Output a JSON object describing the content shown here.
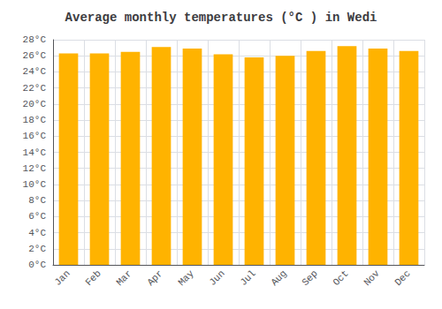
{
  "chart_data": {
    "type": "bar",
    "title": "Average monthly temperatures (°C ) in Wedi",
    "categories": [
      "Jan",
      "Feb",
      "Mar",
      "Apr",
      "May",
      "Jun",
      "Jul",
      "Aug",
      "Sep",
      "Oct",
      "Nov",
      "Dec"
    ],
    "values": [
      26.3,
      26.3,
      26.5,
      27.1,
      26.9,
      26.2,
      25.8,
      26.0,
      26.6,
      27.2,
      26.9,
      26.6
    ],
    "color": "#FFB300",
    "ylim": [
      0,
      28
    ],
    "yticks": [
      {
        "value": 0,
        "label": "0°C"
      },
      {
        "value": 2,
        "label": "2°C"
      },
      {
        "value": 4,
        "label": "4°C"
      },
      {
        "value": 6,
        "label": "6°C"
      },
      {
        "value": 8,
        "label": "8°C"
      },
      {
        "value": 10,
        "label": "10°C"
      },
      {
        "value": 12,
        "label": "12°C"
      },
      {
        "value": 14,
        "label": "14°C"
      },
      {
        "value": 16,
        "label": "16°C"
      },
      {
        "value": 18,
        "label": "18°C"
      },
      {
        "value": 20,
        "label": "20°C"
      },
      {
        "value": 22,
        "label": "22°C"
      },
      {
        "value": 24,
        "label": "24°C"
      },
      {
        "value": 26,
        "label": "26°C"
      },
      {
        "value": 28,
        "label": "28°C"
      }
    ],
    "grid": true
  }
}
